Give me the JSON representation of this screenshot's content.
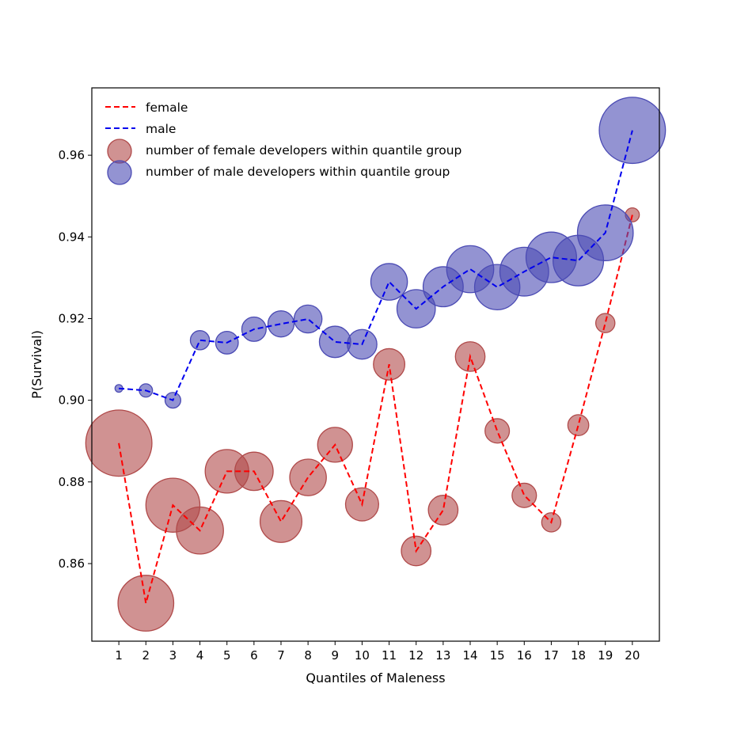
{
  "chart_data": {
    "type": "scatter",
    "title": "",
    "xlabel": "Quantiles of Maleness",
    "ylabel": "P(Survival)",
    "xlim": [
      0,
      21
    ],
    "ylim": [
      0.841,
      0.9765
    ],
    "x": [
      1,
      2,
      3,
      4,
      5,
      6,
      7,
      8,
      9,
      10,
      11,
      12,
      13,
      14,
      15,
      16,
      17,
      18,
      19,
      20
    ],
    "xticks": [
      1,
      2,
      3,
      4,
      5,
      6,
      7,
      8,
      9,
      10,
      11,
      12,
      13,
      14,
      15,
      16,
      17,
      18,
      19,
      20
    ],
    "yticks": [
      0.86,
      0.88,
      0.9,
      0.92,
      0.94,
      0.96
    ],
    "ytick_labels": [
      "0.86",
      "0.88",
      "0.90",
      "0.92",
      "0.94",
      "0.96"
    ],
    "grid": false,
    "legend_position": "top-left",
    "series": [
      {
        "name": "female",
        "line_color": "#ff0000",
        "marker_color": "#b04a4a",
        "values": [
          0.8895,
          0.8503,
          0.8743,
          0.8681,
          0.8826,
          0.8826,
          0.8703,
          0.8811,
          0.8891,
          0.8745,
          0.9088,
          0.8631,
          0.8731,
          0.9107,
          0.8925,
          0.8767,
          0.8701,
          0.8939,
          0.9189,
          0.9454
        ],
        "sizes": [
          1.9,
          1.6,
          1.55,
          1.35,
          1.25,
          1.1,
          1.2,
          1.05,
          1.0,
          0.95,
          0.9,
          0.85,
          0.85,
          0.85,
          0.7,
          0.7,
          0.55,
          0.6,
          0.55,
          0.4
        ]
      },
      {
        "name": "male",
        "line_color": "#0000ee",
        "marker_color": "#4b4bb4",
        "values": [
          0.9029,
          0.9024,
          0.9,
          0.9147,
          0.9141,
          0.9174,
          0.9187,
          0.9199,
          0.9143,
          0.9137,
          0.929,
          0.9224,
          0.9278,
          0.9321,
          0.9277,
          0.9315,
          0.935,
          0.9342,
          0.941,
          0.9661
        ],
        "sizes": [
          0.22,
          0.38,
          0.45,
          0.55,
          0.65,
          0.7,
          0.75,
          0.8,
          0.9,
          0.85,
          1.05,
          1.1,
          1.15,
          1.35,
          1.3,
          1.4,
          1.45,
          1.45,
          1.6,
          1.9
        ]
      }
    ],
    "legend": [
      {
        "label": "female",
        "kind": "line",
        "color": "#ff0000"
      },
      {
        "label": "male",
        "kind": "line",
        "color": "#0000ee"
      },
      {
        "label": "number of female developers within quantile group",
        "kind": "marker",
        "color": "#b04a4a"
      },
      {
        "label": "number of male developers within quantile group",
        "kind": "marker",
        "color": "#4b4bb4"
      }
    ]
  }
}
